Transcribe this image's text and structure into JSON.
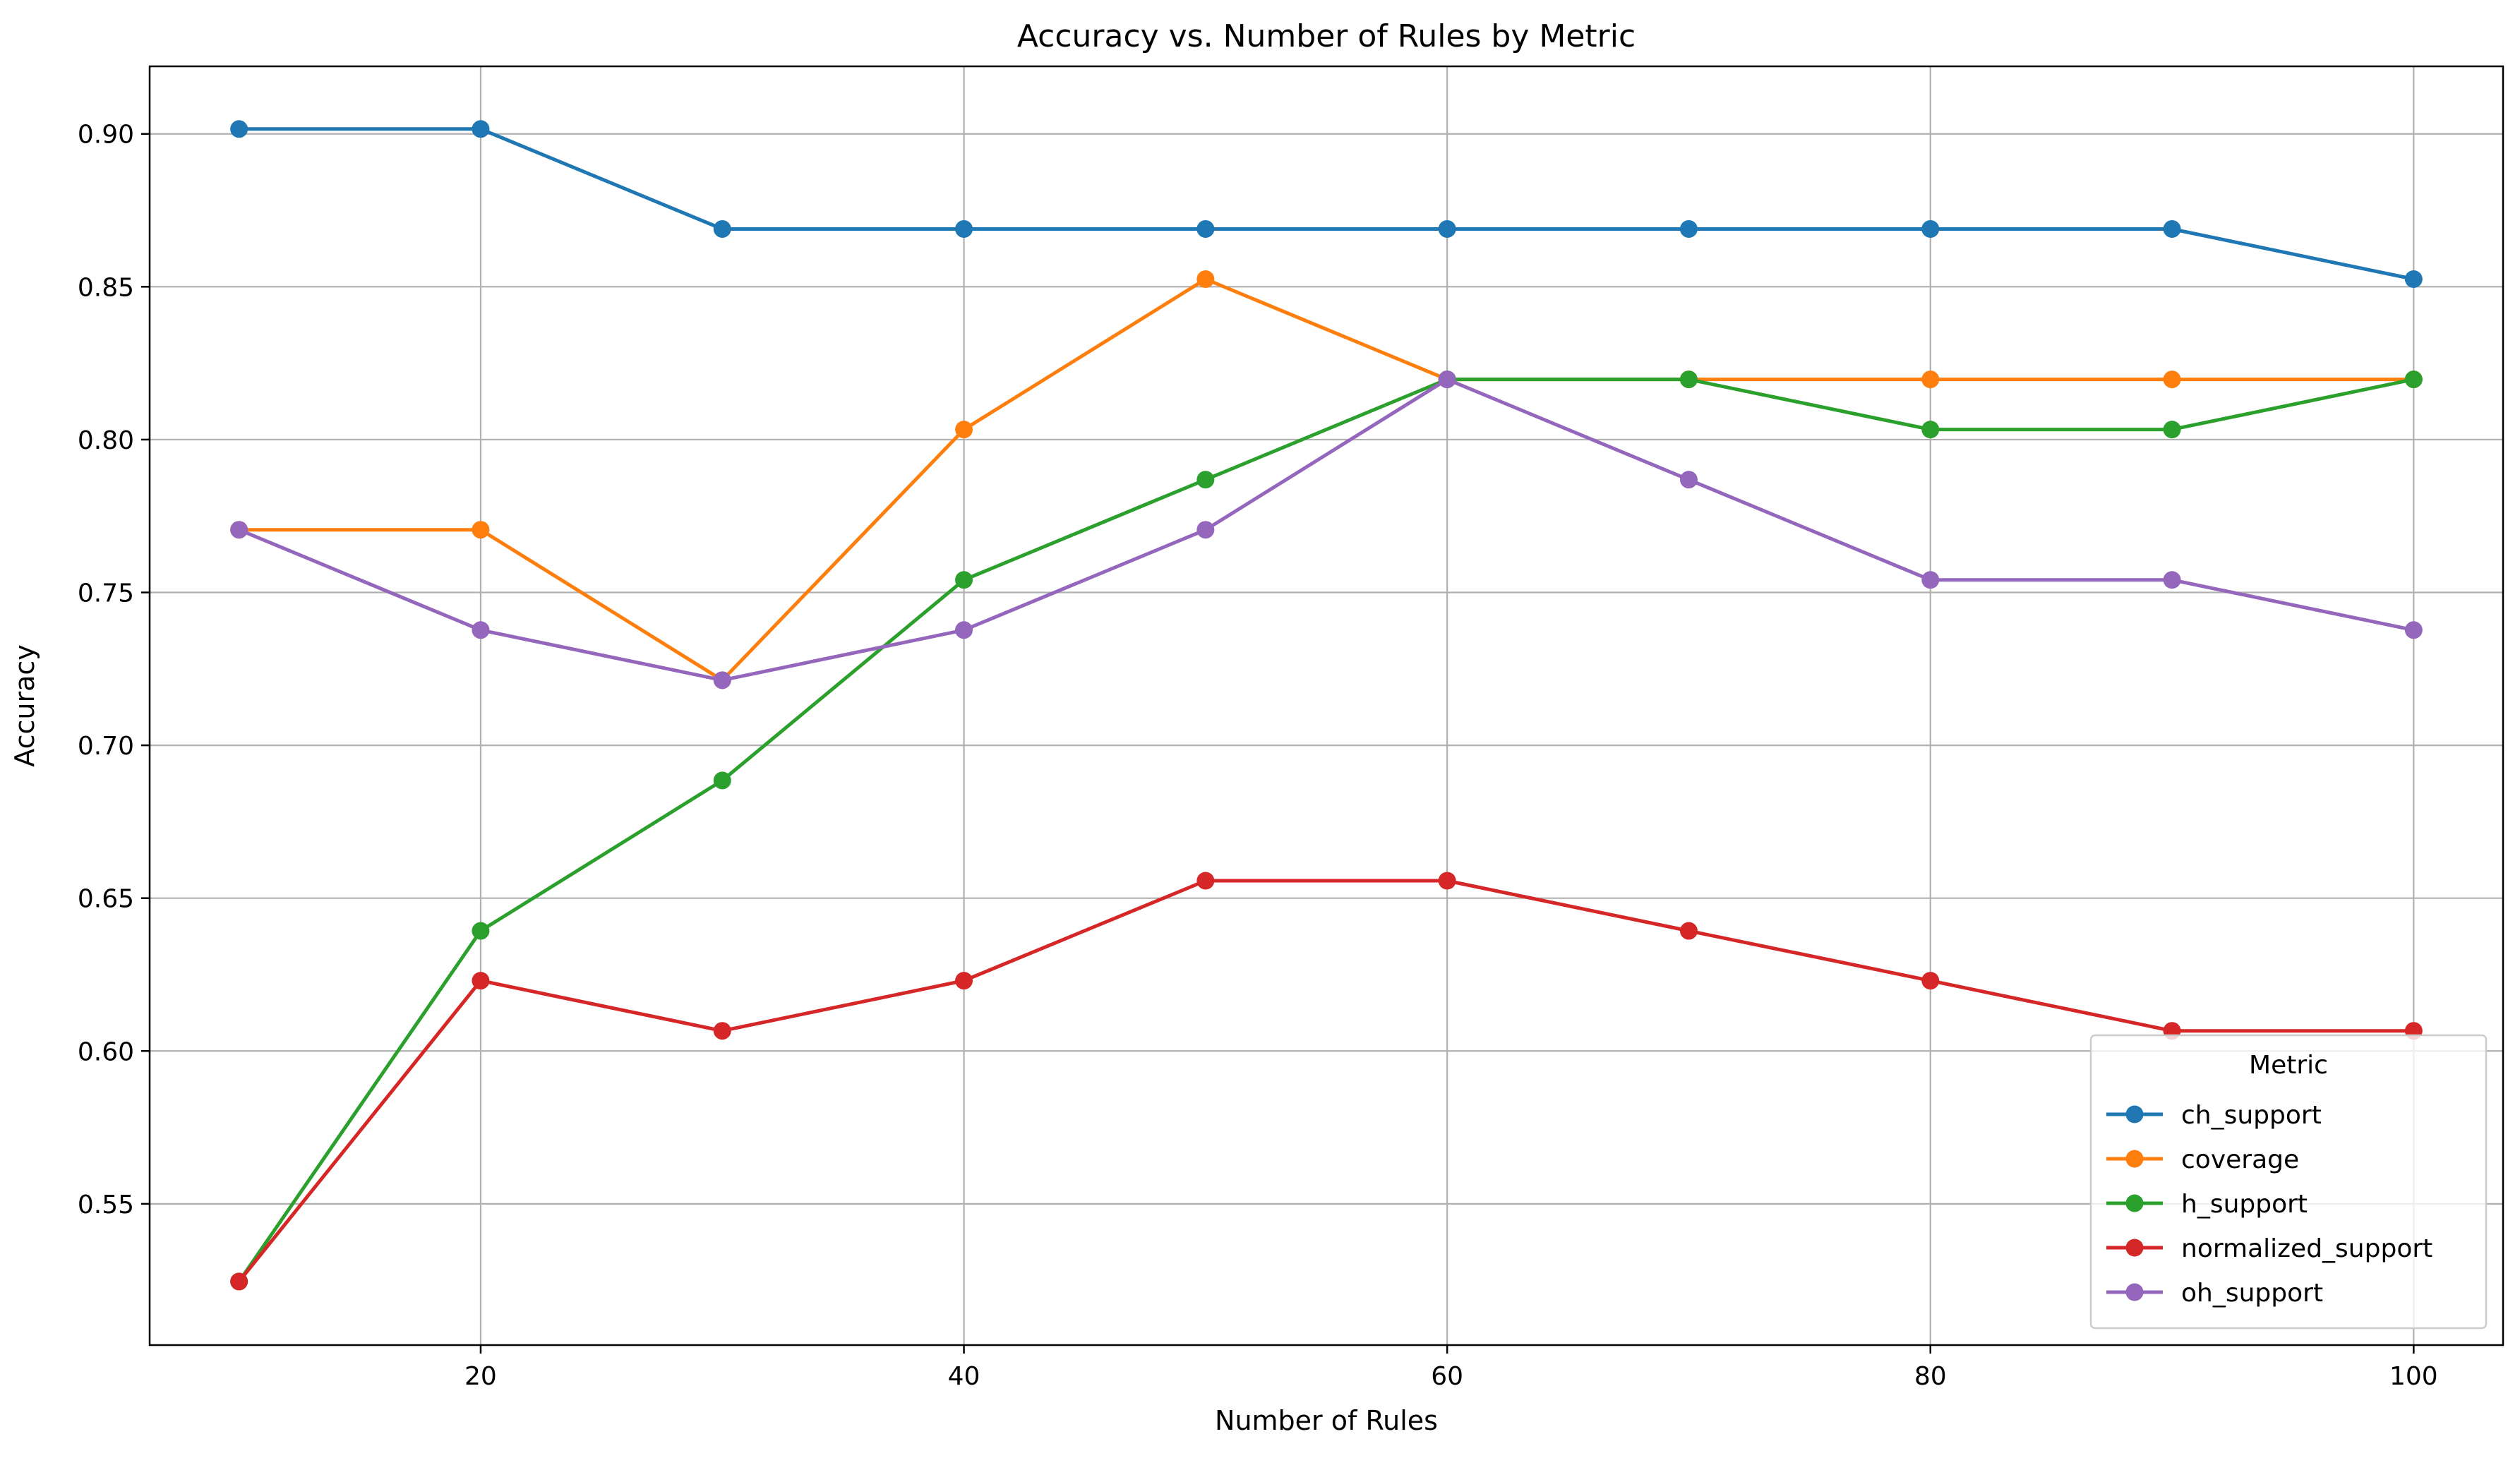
{
  "chart_data": {
    "type": "line",
    "title": "Accuracy vs. Number of Rules by Metric",
    "xlabel": "Number of Rules",
    "ylabel": "Accuracy",
    "x": [
      10,
      20,
      30,
      40,
      50,
      60,
      70,
      80,
      90,
      100
    ],
    "xlim": [
      6.3,
      103.7
    ],
    "ylim": [
      0.5038,
      0.9221
    ],
    "xticks": [
      20,
      40,
      60,
      80,
      100
    ],
    "yticks": [
      0.55,
      0.6,
      0.65,
      0.7,
      0.75,
      0.8,
      0.85,
      0.9
    ],
    "ytick_labels": [
      "0.55",
      "0.60",
      "0.65",
      "0.70",
      "0.75",
      "0.80",
      "0.85",
      "0.90"
    ],
    "grid": true,
    "legend": {
      "title": "Metric",
      "placement": "lower-right"
    },
    "series": [
      {
        "name": "ch_support",
        "color": "#1f77b4",
        "values": [
          0.9016,
          0.9016,
          0.8689,
          0.8689,
          0.8689,
          0.8689,
          0.8689,
          0.8689,
          0.8689,
          0.8525
        ]
      },
      {
        "name": "coverage",
        "color": "#ff7f0e",
        "values": [
          0.7705,
          0.7705,
          0.7213,
          0.8033,
          0.8525,
          0.8197,
          0.8197,
          0.8197,
          0.8197,
          0.8197
        ]
      },
      {
        "name": "h_support",
        "color": "#2ca02c",
        "values": [
          0.5246,
          0.6393,
          0.6885,
          0.7541,
          0.7869,
          0.8197,
          0.8197,
          0.8033,
          0.8033,
          0.8197
        ]
      },
      {
        "name": "normalized_support",
        "color": "#d62728",
        "values": [
          0.5246,
          0.623,
          0.6066,
          0.623,
          0.6557,
          0.6557,
          0.6393,
          0.623,
          0.6066,
          0.6066
        ]
      },
      {
        "name": "oh_support",
        "color": "#9467bd",
        "values": [
          0.7705,
          0.7377,
          0.7213,
          0.7377,
          0.7705,
          0.8197,
          0.7869,
          0.7541,
          0.7541,
          0.7377
        ]
      }
    ]
  }
}
